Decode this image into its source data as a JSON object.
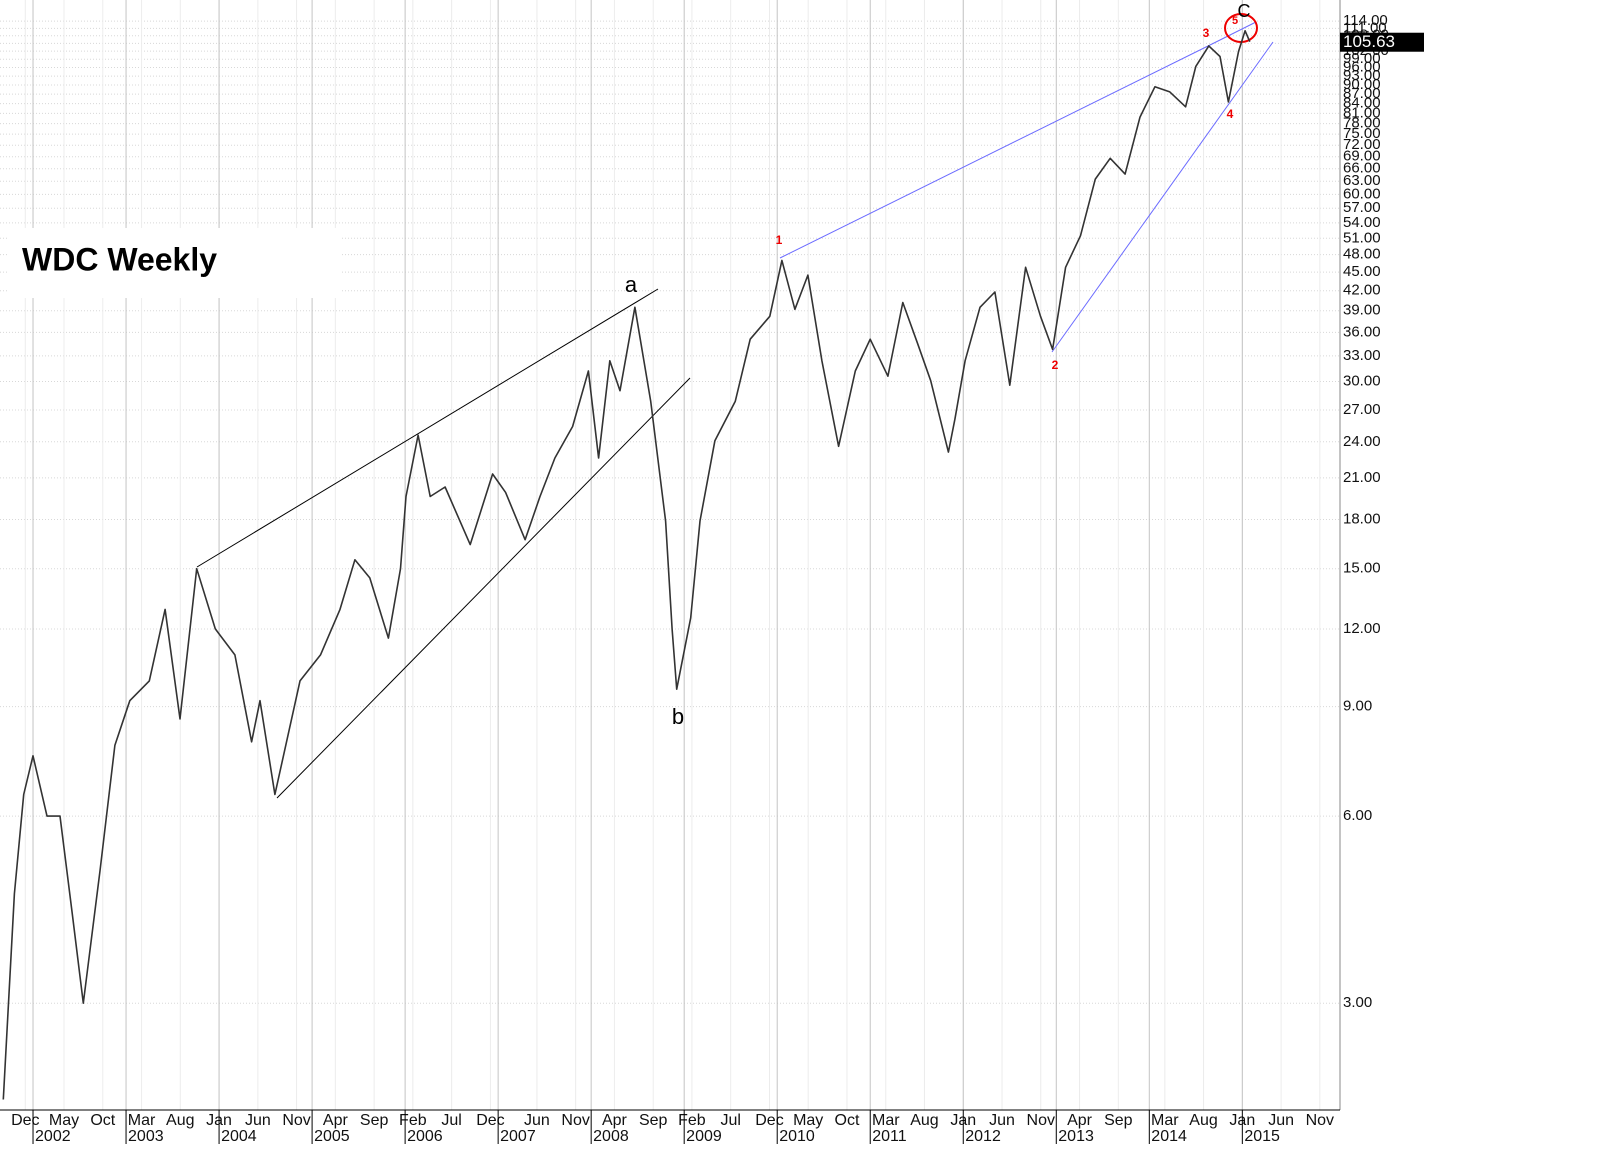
{
  "chart_data": {
    "type": "line",
    "title": "WDC Weekly",
    "log_scale": true,
    "grid": true,
    "color": "#333333",
    "xlim": [
      2001.645,
      2016.05
    ],
    "ylim": [
      2.02,
      118.8
    ],
    "x": [
      2001.68,
      2001.8,
      2001.9,
      2002.0,
      2002.15,
      2002.29,
      2002.42,
      2002.54,
      2002.72,
      2002.88,
      2003.04,
      2003.25,
      2003.42,
      2003.58,
      2003.76,
      2003.96,
      2004.17,
      2004.35,
      2004.44,
      2004.6,
      2004.87,
      2005.09,
      2005.3,
      2005.46,
      2005.62,
      2005.82,
      2005.95,
      2006.01,
      2006.14,
      2006.27,
      2006.43,
      2006.7,
      2006.94,
      2007.08,
      2007.29,
      2007.45,
      2007.61,
      2007.8,
      2007.97,
      2008.08,
      2008.2,
      2008.31,
      2008.47,
      2008.64,
      2008.8,
      2008.87,
      2008.92,
      2009.07,
      2009.17,
      2009.33,
      2009.55,
      2009.71,
      2009.92,
      2010.05,
      2010.19,
      2010.33,
      2010.48,
      2010.66,
      2010.84,
      2011.0,
      2011.19,
      2011.35,
      2011.51,
      2011.65,
      2011.84,
      2011.91,
      2012.02,
      2012.18,
      2012.34,
      2012.5,
      2012.67,
      2012.83,
      2012.96,
      2013.1,
      2013.26,
      2013.42,
      2013.58,
      2013.74,
      2013.9,
      2014.06,
      2014.22,
      2014.39,
      2014.5,
      2014.64,
      2014.76,
      2014.85,
      2014.96,
      2015.03,
      2015.08
    ],
    "values": [
      2.1,
      4.5,
      6.5,
      7.5,
      6.0,
      6.0,
      4.2,
      3.0,
      4.9,
      7.8,
      9.2,
      9.9,
      12.9,
      8.6,
      15.0,
      12.0,
      10.9,
      7.9,
      9.2,
      6.5,
      9.9,
      10.9,
      12.9,
      15.5,
      14.5,
      11.6,
      15.0,
      19.6,
      24.6,
      19.6,
      20.3,
      16.4,
      21.3,
      19.9,
      16.7,
      19.6,
      22.6,
      25.4,
      31.2,
      22.6,
      32.4,
      29.0,
      39.5,
      27.9,
      17.9,
      12.0,
      9.6,
      12.5,
      17.9,
      24.1,
      27.9,
      35.1,
      38.2,
      47.0,
      39.2,
      44.5,
      32.4,
      23.6,
      31.2,
      35.1,
      30.6,
      40.2,
      34.5,
      30.1,
      23.1,
      26.1,
      32.4,
      39.5,
      41.8,
      29.6,
      45.8,
      38.2,
      33.8,
      45.8,
      51.5,
      63.5,
      68.6,
      64.7,
      79.9,
      89.4,
      87.7,
      83.0,
      96.4,
      104.0,
      100.0,
      84.5,
      102.0,
      110.0,
      105.63
    ],
    "last_value": 105.63,
    "yticks": [
      {
        "value": 3,
        "label": "3.00"
      },
      {
        "value": 6,
        "label": "6.00"
      },
      {
        "value": 9,
        "label": "9.00"
      },
      {
        "value": 12,
        "label": "12.00"
      },
      {
        "value": 15,
        "label": "15.00"
      },
      {
        "value": 18,
        "label": "18.00"
      },
      {
        "value": 21,
        "label": "21.00"
      },
      {
        "value": 24,
        "label": "24.00"
      },
      {
        "value": 27,
        "label": "27.00"
      },
      {
        "value": 30,
        "label": "30.00"
      },
      {
        "value": 33,
        "label": "33.00"
      },
      {
        "value": 36,
        "label": "36.00"
      },
      {
        "value": 39,
        "label": "39.00"
      },
      {
        "value": 42,
        "label": "42.00"
      },
      {
        "value": 45,
        "label": "45.00"
      },
      {
        "value": 48,
        "label": "48.00"
      },
      {
        "value": 51,
        "label": "51.00"
      },
      {
        "value": 54,
        "label": "54.00"
      },
      {
        "value": 57,
        "label": "57.00"
      },
      {
        "value": 60,
        "label": "60.00"
      },
      {
        "value": 63,
        "label": "63.00"
      },
      {
        "value": 66,
        "label": "66.00"
      },
      {
        "value": 69,
        "label": "69.00"
      },
      {
        "value": 72,
        "label": "72.00"
      },
      {
        "value": 75,
        "label": "75.00"
      },
      {
        "value": 78,
        "label": "78.00"
      },
      {
        "value": 81,
        "label": "81.00"
      },
      {
        "value": 84,
        "label": "84.00"
      },
      {
        "value": 87,
        "label": "87.00"
      },
      {
        "value": 90,
        "label": "90.00"
      },
      {
        "value": 93,
        "label": "93.00"
      },
      {
        "value": 96,
        "label": "96.00"
      },
      {
        "value": 99,
        "label": "99.00"
      },
      {
        "value": 102,
        "label": "102.00"
      },
      {
        "value": 105,
        "label": "105.00"
      },
      {
        "value": 108,
        "label": "108.00"
      },
      {
        "value": 111,
        "label": "111.00"
      },
      {
        "value": 114,
        "label": "114.00"
      }
    ],
    "xticks": [
      {
        "value": 2001.917,
        "label": "Dec"
      },
      {
        "value": 2002.333,
        "label": "May"
      },
      {
        "value": 2002.75,
        "label": "Oct"
      },
      {
        "value": 2003.167,
        "label": "Mar"
      },
      {
        "value": 2003.583,
        "label": "Aug"
      },
      {
        "value": 2004.0,
        "label": "Jan"
      },
      {
        "value": 2004.417,
        "label": "Jun"
      },
      {
        "value": 2004.833,
        "label": "Nov"
      },
      {
        "value": 2005.25,
        "label": "Apr"
      },
      {
        "value": 2005.667,
        "label": "Sep"
      },
      {
        "value": 2006.083,
        "label": "Feb"
      },
      {
        "value": 2006.5,
        "label": "Jul"
      },
      {
        "value": 2006.917,
        "label": "Dec"
      },
      {
        "value": 2007.417,
        "label": "Jun"
      },
      {
        "value": 2007.833,
        "label": "Nov"
      },
      {
        "value": 2008.25,
        "label": "Apr"
      },
      {
        "value": 2008.667,
        "label": "Sep"
      },
      {
        "value": 2009.083,
        "label": "Feb"
      },
      {
        "value": 2009.5,
        "label": "Jul"
      },
      {
        "value": 2009.917,
        "label": "Dec"
      },
      {
        "value": 2010.333,
        "label": "May"
      },
      {
        "value": 2010.75,
        "label": "Oct"
      },
      {
        "value": 2011.167,
        "label": "Mar"
      },
      {
        "value": 2011.583,
        "label": "Aug"
      },
      {
        "value": 2012.0,
        "label": "Jan"
      },
      {
        "value": 2012.417,
        "label": "Jun"
      },
      {
        "value": 2012.833,
        "label": "Nov"
      },
      {
        "value": 2013.25,
        "label": "Apr"
      },
      {
        "value": 2013.667,
        "label": "Sep"
      },
      {
        "value": 2014.167,
        "label": "Mar"
      },
      {
        "value": 2014.583,
        "label": "Aug"
      },
      {
        "value": 2015.0,
        "label": "Jan"
      },
      {
        "value": 2015.417,
        "label": "Jun"
      },
      {
        "value": 2015.833,
        "label": "Nov"
      }
    ],
    "year_ticks": [
      2002,
      2003,
      2004,
      2005,
      2006,
      2007,
      2008,
      2009,
      2010,
      2011,
      2012,
      2013,
      2014,
      2015
    ],
    "annotations": [
      "a",
      "b",
      "1",
      "2",
      "3",
      "4",
      "5",
      "C"
    ]
  }
}
